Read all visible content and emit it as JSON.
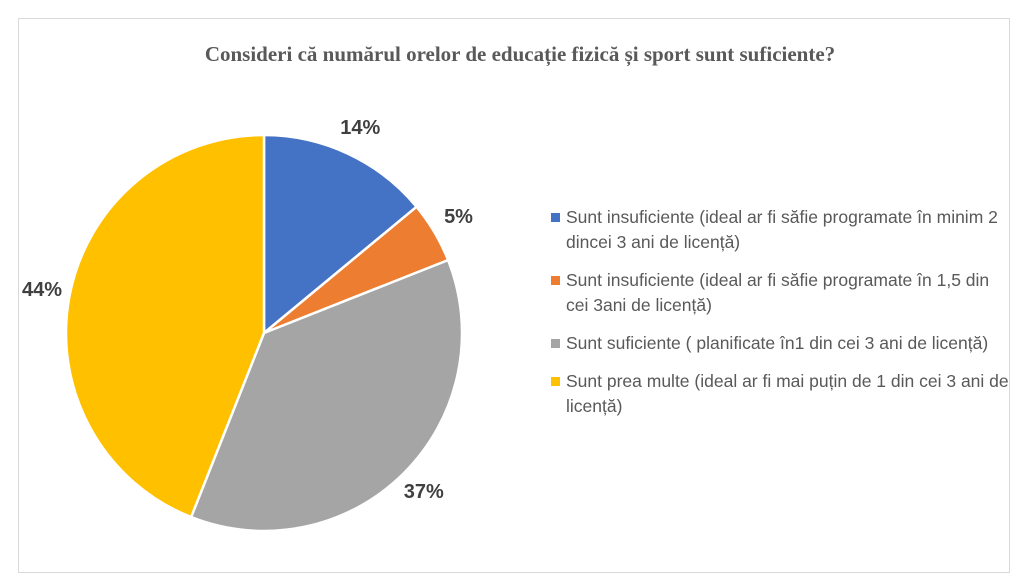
{
  "chart_data": {
    "type": "pie",
    "title": "Consideri că numărul orelor de educație fizică și sport sunt suficiente?",
    "categories": [
      "Sunt insuficiente (ideal ar fi săfie programate în minim 2 dincei 3 ani de licență)",
      "Sunt insuficiente (ideal ar fi săfie programate în 1,5 din cei 3ani de licență)",
      "Sunt suficiente ( planificate în1 din cei 3 ani de licență)",
      "Sunt prea multe (ideal ar fi mai puțin de 1 din cei 3 ani de licență)"
    ],
    "values": [
      14,
      5,
      37,
      44
    ],
    "value_labels": [
      "14%",
      "5%",
      "37%",
      "44%"
    ],
    "colors": [
      "#4472c4",
      "#ed7d31",
      "#a5a5a5",
      "#ffc000"
    ],
    "legend": "right"
  }
}
